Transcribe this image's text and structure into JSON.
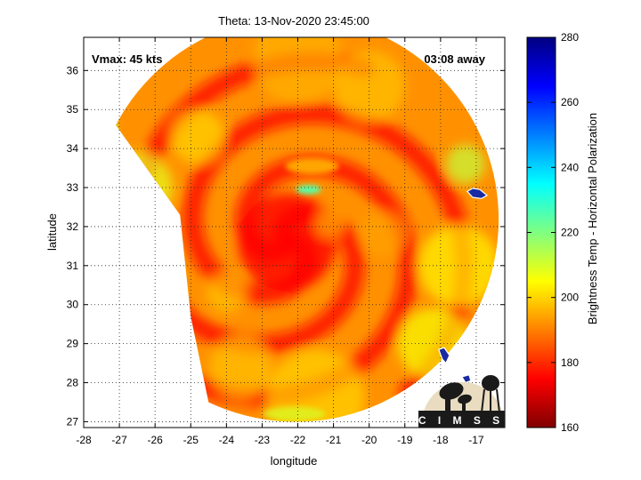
{
  "chart_data": {
    "type": "heatmap",
    "title": "Theta: 13-Nov-2020 23:45:00",
    "xlabel": "longitude",
    "ylabel": "latitude",
    "xlim": [
      -28,
      -16.2
    ],
    "ylim": [
      26.85,
      36.85
    ],
    "x_ticks": [
      -28,
      -27,
      -26,
      -25,
      -24,
      -23,
      -22,
      -21,
      -20,
      -19,
      -18,
      -17
    ],
    "y_ticks": [
      27,
      28,
      29,
      30,
      31,
      32,
      33,
      34,
      35,
      36
    ],
    "grid": true,
    "grid_style": "dotted",
    "colorbar": {
      "label": "Brightness Temp - Horizontal Polarization",
      "range": [
        160,
        280
      ],
      "ticks": [
        160,
        180,
        200,
        220,
        240,
        260,
        280
      ],
      "colormap": "jet"
    },
    "annotations": {
      "top_left": "Vmax: 45 kts",
      "top_right": "03:08 away"
    },
    "storm_center": {
      "lon": -22.3,
      "lat": 31.6
    },
    "swath_edge_lons": [
      -27.1,
      -25.0,
      -24.5
    ],
    "logo_text": "CIMSS"
  }
}
